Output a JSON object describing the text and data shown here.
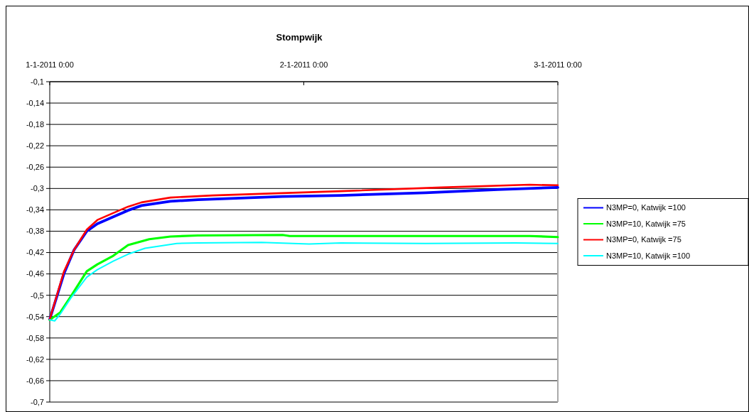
{
  "chart_data": {
    "type": "line",
    "title": "Stompwijk",
    "xlim": [
      "2011-01-01T00:00",
      "2011-01-03T00:00"
    ],
    "xticks": [
      {
        "value": "2011-01-01T00:00",
        "label": "1-1-2011 0:00"
      },
      {
        "value": "2011-01-02T00:00",
        "label": "2-1-2011 0:00"
      },
      {
        "value": "2011-01-03T00:00",
        "label": "3-1-2011 0:00"
      }
    ],
    "ylim": [
      -0.7,
      -0.1
    ],
    "yticks": [
      {
        "value": -0.1,
        "label": "-0,1"
      },
      {
        "value": -0.14,
        "label": "-0,14"
      },
      {
        "value": -0.18,
        "label": "-0,18"
      },
      {
        "value": -0.22,
        "label": "-0,22"
      },
      {
        "value": -0.26,
        "label": "-0,26"
      },
      {
        "value": -0.3,
        "label": "-0,3"
      },
      {
        "value": -0.34,
        "label": "-0,34"
      },
      {
        "value": -0.38,
        "label": "-0,38"
      },
      {
        "value": -0.42,
        "label": "-0,42"
      },
      {
        "value": -0.46,
        "label": "-0,46"
      },
      {
        "value": -0.5,
        "label": "-0,5"
      },
      {
        "value": -0.54,
        "label": "-0,54"
      },
      {
        "value": -0.58,
        "label": "-0,58"
      },
      {
        "value": -0.62,
        "label": "-0,62"
      },
      {
        "value": -0.66,
        "label": "-0,66"
      },
      {
        "value": -0.7,
        "label": "-0,7"
      }
    ],
    "grid": "y",
    "legend": "right",
    "marker": "none",
    "line_style": "solid",
    "series": [
      {
        "name": "N3MP=0, Katwijk =100",
        "color": "#0000ff",
        "x": [
          "2011-01-01T00:00",
          "2011-01-01T01:20",
          "2011-01-01T02:18",
          "2011-01-01T03:30",
          "2011-01-01T04:30",
          "2011-01-01T06:00",
          "2011-01-01T07:24",
          "2011-01-01T08:40",
          "2011-01-01T11:24",
          "2011-01-01T14:00",
          "2011-01-01T22:00",
          "2011-01-02T03:30",
          "2011-01-02T11:30",
          "2011-01-02T18:20",
          "2011-01-03T00:00"
        ],
        "values": [
          -0.545,
          -0.46,
          -0.415,
          -0.38,
          -0.366,
          -0.353,
          -0.341,
          -0.332,
          -0.324,
          -0.321,
          -0.315,
          -0.313,
          -0.308,
          -0.302,
          -0.298
        ]
      },
      {
        "name": "N3MP=10, Katwijk =75",
        "color": "#00ff00",
        "x": [
          "2011-01-01T00:00",
          "2011-01-01T01:00",
          "2011-01-01T02:00",
          "2011-01-01T03:30",
          "2011-01-01T04:30",
          "2011-01-01T06:00",
          "2011-01-01T07:24",
          "2011-01-01T09:24",
          "2011-01-01T11:24",
          "2011-01-01T14:00",
          "2011-01-01T22:00",
          "2011-01-01T22:40",
          "2011-01-02T21:20",
          "2011-01-03T00:00"
        ],
        "values": [
          -0.546,
          -0.532,
          -0.502,
          -0.455,
          -0.442,
          -0.426,
          -0.406,
          -0.395,
          -0.39,
          -0.388,
          -0.387,
          -0.389,
          -0.389,
          -0.391
        ]
      },
      {
        "name": "N3MP=0, Katwijk =75",
        "color": "#ff0000",
        "x": [
          "2011-01-01T00:00",
          "2011-01-01T01:20",
          "2011-01-01T02:18",
          "2011-01-01T03:30",
          "2011-01-01T04:30",
          "2011-01-01T06:00",
          "2011-01-01T07:24",
          "2011-01-01T08:40",
          "2011-01-01T11:24",
          "2011-01-01T13:24",
          "2011-01-01T15:24",
          "2011-01-02T03:30",
          "2011-01-02T13:00",
          "2011-01-02T21:20",
          "2011-01-03T00:00"
        ],
        "values": [
          -0.545,
          -0.456,
          -0.415,
          -0.377,
          -0.359,
          -0.346,
          -0.334,
          -0.326,
          -0.317,
          -0.315,
          -0.313,
          -0.305,
          -0.298,
          -0.293,
          -0.294
        ]
      },
      {
        "name": "N3MP=10, Katwijk =100",
        "color": "#00ffff",
        "x": [
          "2011-01-01T00:00",
          "2011-01-01T00:28",
          "2011-01-01T01:00",
          "2011-01-01T02:00",
          "2011-01-01T03:30",
          "2011-01-01T04:30",
          "2011-01-01T06:00",
          "2011-01-01T07:24",
          "2011-01-01T09:00",
          "2011-01-01T12:00",
          "2011-01-01T14:00",
          "2011-01-01T20:00",
          "2011-01-02T00:30",
          "2011-01-02T03:30",
          "2011-01-02T11:30",
          "2011-01-02T20:00",
          "2011-01-03T00:00"
        ],
        "values": [
          -0.546,
          -0.548,
          -0.535,
          -0.505,
          -0.466,
          -0.452,
          -0.436,
          -0.423,
          -0.412,
          -0.403,
          -0.402,
          -0.401,
          -0.404,
          -0.402,
          -0.403,
          -0.402,
          -0.403
        ]
      }
    ]
  }
}
